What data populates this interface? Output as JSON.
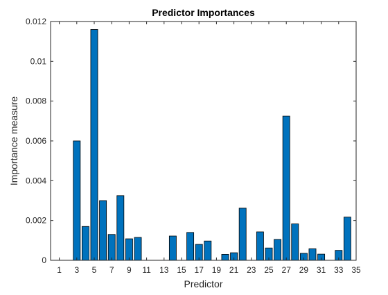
{
  "chart_data": {
    "type": "bar",
    "title": "Predictor Importances",
    "xlabel": "Predictor",
    "ylabel": "Importance measure",
    "ylim": [
      0,
      0.012
    ],
    "xlim": [
      0,
      35
    ],
    "grid": false,
    "bar_color": "#0072BD",
    "edge_color": "#000000",
    "x": [
      1,
      2,
      3,
      4,
      5,
      6,
      7,
      8,
      9,
      10,
      11,
      12,
      13,
      14,
      15,
      16,
      17,
      18,
      19,
      20,
      21,
      22,
      23,
      24,
      25,
      26,
      27,
      28,
      29,
      30,
      31,
      32,
      33,
      34
    ],
    "values": [
      0,
      0,
      0.006,
      0.0017,
      0.0116,
      0.003,
      0.0013,
      0.00325,
      0.00108,
      0.00115,
      0,
      0,
      0,
      0.00122,
      0,
      0.0014,
      0.0008,
      0.00097,
      0,
      0.0003,
      0.00038,
      0.00262,
      0,
      0.00143,
      0.00062,
      0.00105,
      0.00725,
      0.00183,
      0.00035,
      0.00058,
      0.00031,
      0,
      0.0005,
      0.00217
    ],
    "xticks": [
      "1",
      "3",
      "5",
      "7",
      "9",
      "11",
      "13",
      "15",
      "17",
      "19",
      "21",
      "23",
      "25",
      "27",
      "29",
      "31",
      "33",
      "35"
    ],
    "yticks": [
      "0",
      "0.002",
      "0.004",
      "0.006",
      "0.008",
      "0.01",
      "0.012"
    ]
  }
}
